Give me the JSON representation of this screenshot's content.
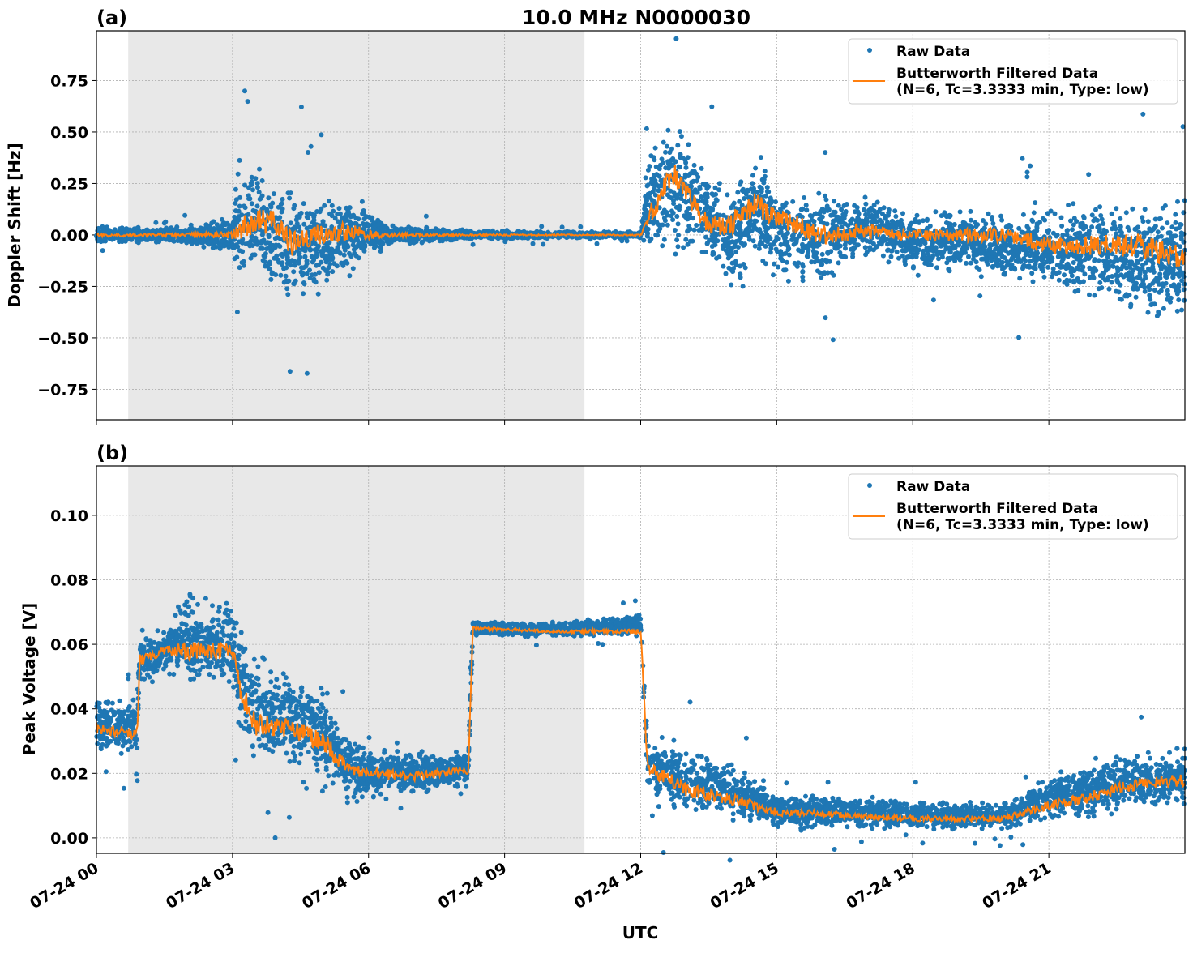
{
  "chart_data": [
    {
      "type": "scatter",
      "panel_label": "(a)",
      "title": "10.0 MHz N0000030",
      "ylabel": "Doppler Shift [Hz]",
      "xlabel": "",
      "xlim_hours_utc": [
        0,
        24
      ],
      "ylim": [
        -0.898,
        0.992
      ],
      "yticks": [
        "0.75",
        "0.50",
        "0.25",
        "0.00",
        "−0.25",
        "−0.50",
        "−0.75"
      ],
      "ytick_values": [
        0.75,
        0.5,
        0.25,
        0,
        -0.25,
        -0.5,
        -0.75
      ],
      "grid": true,
      "shaded_span_hours": [
        0.7,
        10.76
      ],
      "legend": {
        "placement": "top-right",
        "raw": "Raw Data",
        "filtered_line1": "Butterworth Filtered Data",
        "filtered_line2": "(N=6, Tc=3.3333 min, Type: low)"
      },
      "colors": {
        "raw": "#1f77b4",
        "filtered": "#ff7f0e",
        "shade": "#e8e8e8"
      },
      "raw_envelope": {
        "x": [
          0,
          1,
          2,
          3,
          3.1,
          3.5,
          4,
          4.3,
          4.7,
          5,
          5.5,
          6,
          6.5,
          7,
          8,
          10,
          12,
          12.2,
          12.7,
          13,
          13.5,
          14,
          14.5,
          15,
          16,
          17,
          18,
          19,
          20,
          21,
          22,
          23,
          24
        ],
        "low": [
          -0.05,
          -0.04,
          -0.05,
          -0.1,
          -0.25,
          -0.3,
          -0.35,
          -0.45,
          -0.35,
          -0.3,
          -0.25,
          -0.15,
          -0.06,
          -0.05,
          -0.03,
          -0.02,
          -0.02,
          -0.1,
          -0.1,
          -0.1,
          -0.15,
          -0.35,
          -0.2,
          -0.25,
          -0.3,
          -0.15,
          -0.2,
          -0.2,
          -0.25,
          -0.3,
          -0.35,
          -0.45,
          -0.45
        ],
        "high": [
          0.05,
          0.04,
          0.05,
          0.1,
          0.35,
          0.4,
          0.35,
          0.3,
          0.25,
          0.2,
          0.25,
          0.15,
          0.06,
          0.05,
          0.03,
          0.02,
          0.02,
          0.45,
          0.6,
          0.5,
          0.35,
          0.3,
          0.45,
          0.3,
          0.25,
          0.25,
          0.15,
          0.15,
          0.15,
          0.15,
          0.2,
          0.2,
          0.2
        ]
      },
      "filtered": {
        "x": [
          0,
          1,
          2,
          3,
          3.1,
          3.5,
          4,
          4.3,
          4.7,
          5,
          5.5,
          6,
          6.5,
          7,
          8,
          10,
          12,
          12.2,
          12.7,
          13,
          13.5,
          14,
          14.5,
          15,
          16,
          17,
          18,
          19,
          20,
          21,
          22,
          23,
          24
        ],
        "y": [
          0,
          0,
          0,
          0,
          0.02,
          0.07,
          0.05,
          -0.05,
          0,
          0,
          0.02,
          0,
          0,
          0,
          0,
          0,
          0,
          0.1,
          0.3,
          0.2,
          0.05,
          0.05,
          0.15,
          0.08,
          0,
          0.02,
          0,
          0,
          0,
          -0.05,
          -0.05,
          -0.05,
          -0.12
        ]
      }
    },
    {
      "type": "scatter",
      "panel_label": "(b)",
      "ylabel": "Peak Voltage [V]",
      "xlabel": "UTC",
      "xlim_hours_utc": [
        0,
        24
      ],
      "xticks": [
        "07-24 00",
        "07-24 03",
        "07-24 06",
        "07-24 09",
        "07-24 12",
        "07-24 15",
        "07-24 18",
        "07-24 21"
      ],
      "ylim": [
        -0.0048,
        0.1153
      ],
      "yticks": [
        "0.10",
        "0.08",
        "0.06",
        "0.04",
        "0.02",
        "0.00"
      ],
      "ytick_values": [
        0.1,
        0.08,
        0.06,
        0.04,
        0.02,
        0
      ],
      "grid": true,
      "shaded_span_hours": [
        0.7,
        10.76
      ],
      "legend": {
        "placement": "top-right",
        "raw": "Raw Data",
        "filtered_line1": "Butterworth Filtered Data",
        "filtered_line2": "(N=6, Tc=3.3333 min, Type: low)"
      },
      "colors": {
        "raw": "#1f77b4",
        "filtered": "#ff7f0e",
        "shade": "#e8e8e8"
      },
      "raw_envelope": {
        "x": [
          0,
          0.9,
          0.95,
          1.5,
          2,
          2.5,
          3,
          3.2,
          3.5,
          4,
          5,
          5.5,
          6,
          7,
          8.2,
          8.3,
          10,
          12,
          12.15,
          13,
          14,
          15,
          18,
          20,
          21,
          22,
          23,
          24
        ],
        "low": [
          0.025,
          0.025,
          0.045,
          0.05,
          0.045,
          0.045,
          0.045,
          0.025,
          0.02,
          0.02,
          0.015,
          0.01,
          0.01,
          0.012,
          0.015,
          0.062,
          0.062,
          0.062,
          0.01,
          0.005,
          0.005,
          0.002,
          0.002,
          0.002,
          0.005,
          0.005,
          0.008,
          0.008
        ],
        "high": [
          0.045,
          0.045,
          0.065,
          0.065,
          0.08,
          0.075,
          0.075,
          0.065,
          0.06,
          0.055,
          0.05,
          0.035,
          0.03,
          0.028,
          0.028,
          0.068,
          0.067,
          0.07,
          0.035,
          0.03,
          0.025,
          0.015,
          0.012,
          0.012,
          0.02,
          0.025,
          0.028,
          0.03
        ]
      },
      "filtered": {
        "x": [
          0,
          0.9,
          0.95,
          1.5,
          2,
          2.5,
          3,
          3.2,
          3.5,
          4,
          5,
          5.5,
          6,
          7,
          8.2,
          8.3,
          10,
          12,
          12.15,
          13,
          14,
          15,
          18,
          20,
          21,
          22,
          23,
          24
        ],
        "y": [
          0.034,
          0.032,
          0.055,
          0.058,
          0.058,
          0.058,
          0.058,
          0.045,
          0.035,
          0.035,
          0.03,
          0.022,
          0.02,
          0.019,
          0.021,
          0.065,
          0.064,
          0.064,
          0.022,
          0.015,
          0.012,
          0.008,
          0.006,
          0.006,
          0.01,
          0.013,
          0.017,
          0.018
        ]
      }
    }
  ]
}
